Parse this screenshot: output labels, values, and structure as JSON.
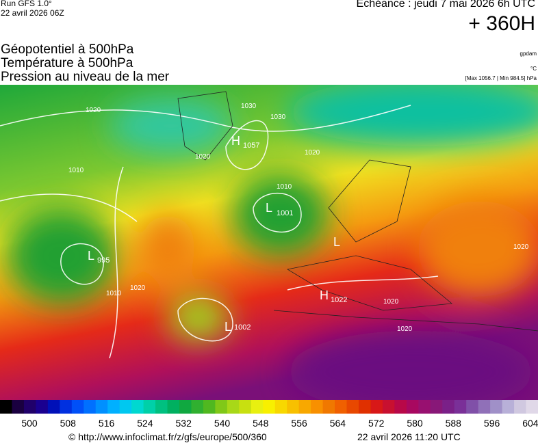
{
  "header": {
    "run": "Run GFS 1.0°",
    "date": "22 avril 2026 06Z",
    "echeance": "Echéance : jeudi 7 mai 2026 6h UTC",
    "lead": "+ 360H",
    "titles": [
      "Géopotentiel à 500hPa",
      "Température à 500hPa",
      "Pression au niveau de la mer"
    ],
    "units": [
      "gpdam",
      "°C",
      "[Max 1056.7 | Min 984.5] hPa"
    ]
  },
  "map": {
    "labels": [
      "H",
      "1057",
      "L",
      "1001",
      "L",
      "995",
      "H",
      "1022",
      "L",
      "1002",
      "L",
      "1020",
      "1030",
      "1030",
      "1020",
      "1010",
      "1010",
      "1020",
      "1020",
      "1020",
      "1010",
      "1020",
      "1020"
    ]
  },
  "colorbar": {
    "ticks": [
      500,
      508,
      516,
      524,
      532,
      540,
      548,
      556,
      564,
      572,
      580,
      588,
      596,
      604
    ]
  },
  "footer": {
    "url": "© http://www.infoclimat.fr/z/gfs/europe/500/360",
    "timestamp": "22 avril 2026 11:20 UTC"
  }
}
